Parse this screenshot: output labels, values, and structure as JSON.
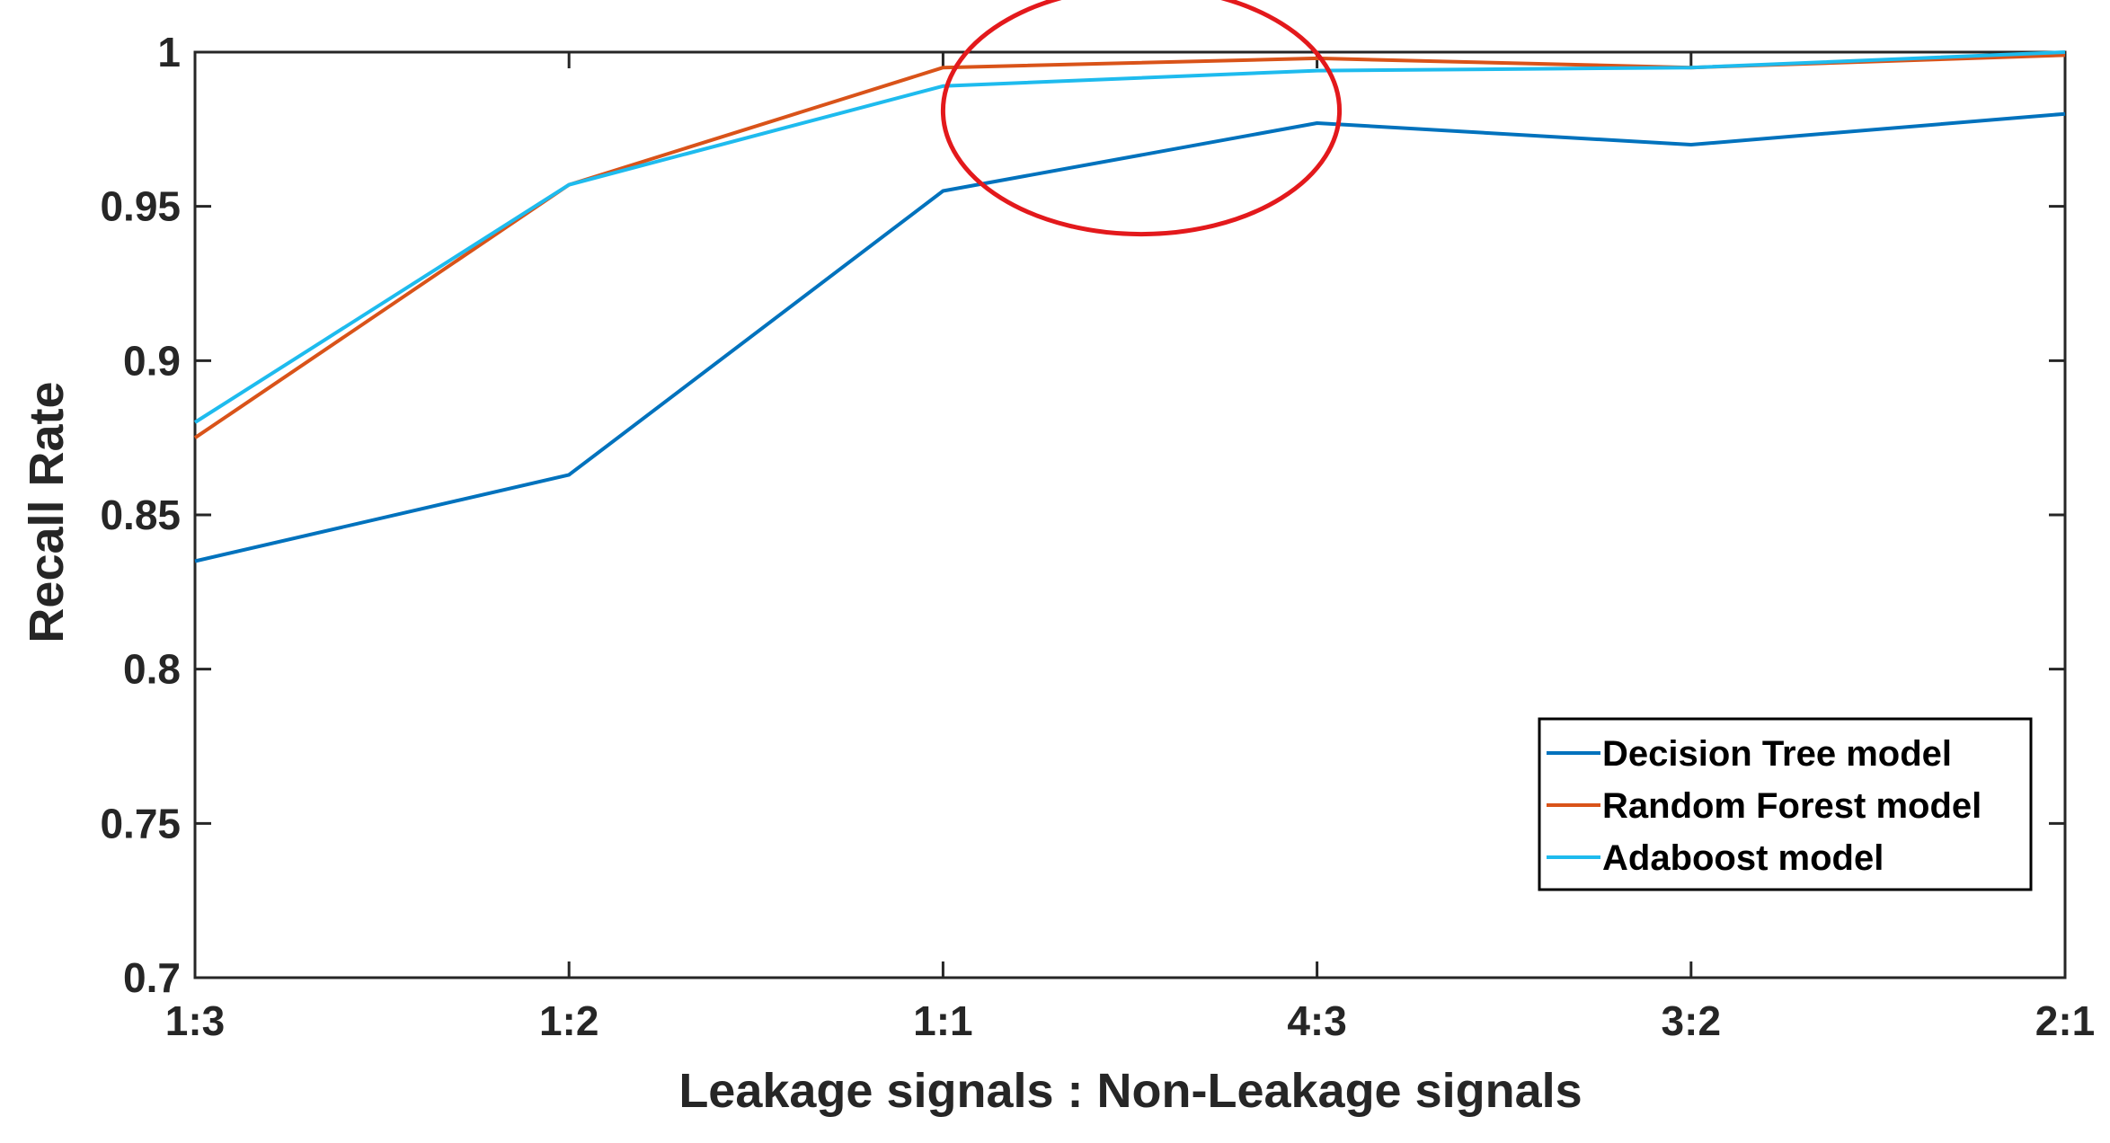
{
  "chart_data": {
    "type": "line",
    "title": "",
    "xlabel": "Leakage signals : Non-Leakage signals",
    "ylabel": "Recall Rate",
    "categories": [
      "1:3",
      "1:2",
      "1:1",
      "4:3",
      "3:2",
      "2:1"
    ],
    "ylim": [
      0.7,
      1.0
    ],
    "yticks": [
      0.7,
      0.75,
      0.8,
      0.85,
      0.9,
      0.95,
      1
    ],
    "ytick_labels": [
      "0.7",
      "0.75",
      "0.8",
      "0.85",
      "0.9",
      "0.95",
      "1"
    ],
    "grid": false,
    "legend_position": "bottom-right",
    "series": [
      {
        "name": "Decision Tree model",
        "color": "#0072BD",
        "values": [
          0.835,
          0.863,
          0.955,
          0.977,
          0.97,
          0.98
        ]
      },
      {
        "name": "Random Forest model",
        "color": "#D95319",
        "values": [
          0.875,
          0.957,
          0.995,
          0.998,
          0.995,
          0.999
        ]
      },
      {
        "name": "Adaboost model",
        "color": "#1EBBEE",
        "values": [
          0.88,
          0.957,
          0.989,
          0.994,
          0.995,
          1.0
        ]
      }
    ],
    "annotations": [
      {
        "type": "ellipse",
        "color": "#E3191C",
        "center": [
          "1:1",
          0.981
        ],
        "x_radius_categories": 0.53,
        "y_radius": 0.04
      }
    ]
  }
}
